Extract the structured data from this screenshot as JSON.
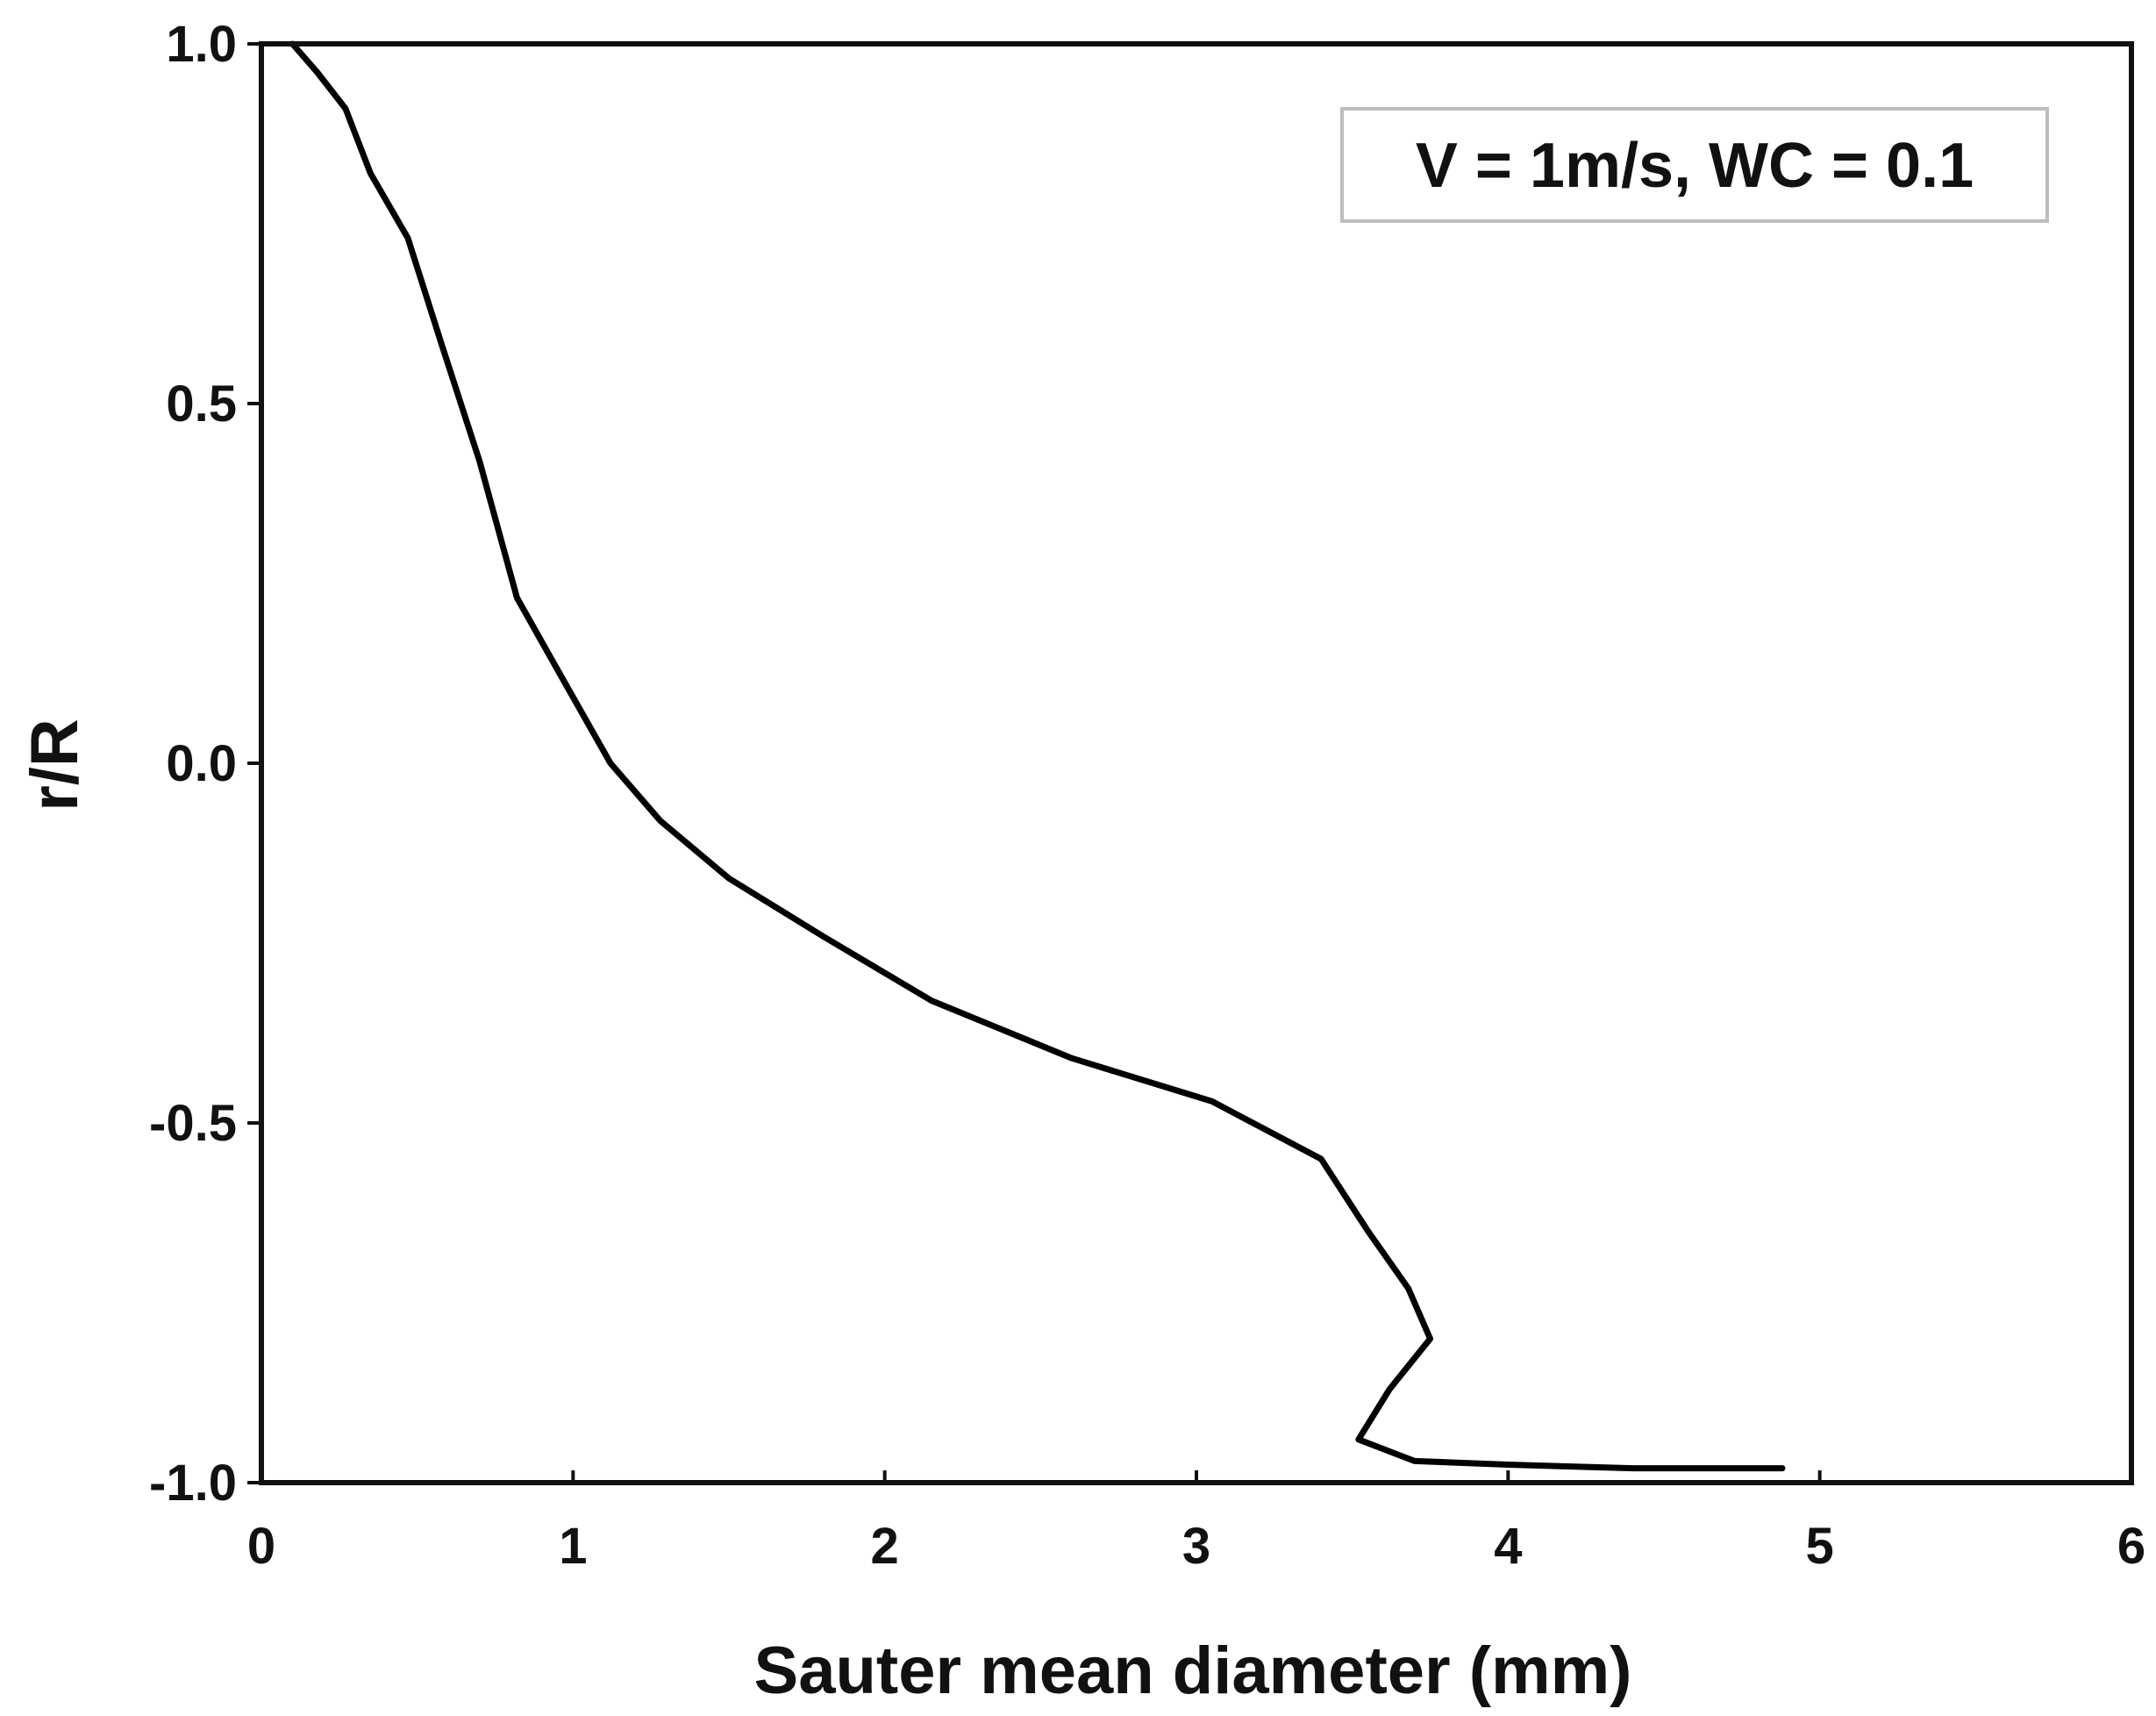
{
  "chart_data": {
    "type": "line",
    "xlabel": "Sauter mean diameter (mm)",
    "ylabel": "r/R",
    "xlim": [
      0,
      6
    ],
    "ylim": [
      -1.0,
      1.0
    ],
    "xticks": [
      0,
      1,
      2,
      3,
      4,
      5,
      6
    ],
    "xtick_labels": [
      "0",
      "1",
      "2",
      "3",
      "4",
      "5",
      "6"
    ],
    "yticks": [
      1.0,
      0.5,
      0.0,
      -0.5,
      -1.0
    ],
    "ytick_labels": [
      "1.0",
      "0.5",
      "0.0",
      "-0.5",
      "-1.0"
    ],
    "grid": false,
    "annotation": "V = 1m/s, WC = 0.1",
    "series": [
      {
        "color": "#000000",
        "x": [
          0.1,
          0.18,
          0.27,
          0.35,
          0.47,
          0.58,
          0.7,
          0.82,
          0.95,
          1.12,
          1.28,
          1.5,
          1.8,
          2.15,
          2.6,
          3.05,
          3.4,
          3.55,
          3.68,
          3.75,
          3.62,
          3.52,
          3.7,
          4.0,
          4.4,
          4.88
        ],
        "y": [
          1.0,
          0.96,
          0.91,
          0.82,
          0.73,
          0.58,
          0.42,
          0.23,
          0.13,
          0.0,
          -0.08,
          -0.16,
          -0.24,
          -0.33,
          -0.41,
          -0.47,
          -0.55,
          -0.65,
          -0.73,
          -0.8,
          -0.87,
          -0.94,
          -0.97,
          -0.975,
          -0.98,
          -0.98
        ]
      }
    ]
  }
}
